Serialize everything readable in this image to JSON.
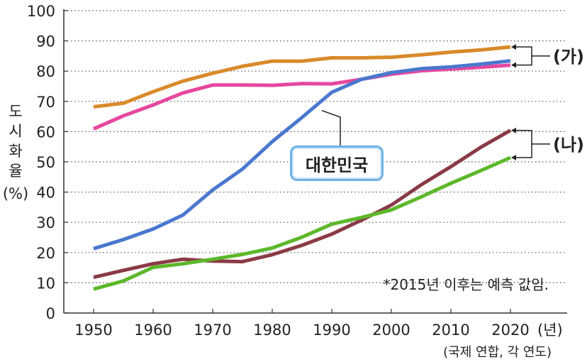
{
  "chart_data": {
    "type": "line",
    "x": [
      1950,
      1955,
      1960,
      1965,
      1970,
      1975,
      1980,
      1985,
      1990,
      1995,
      2000,
      2005,
      2010,
      2015,
      2020
    ],
    "ylim": [
      0,
      100
    ],
    "yticks": [
      0,
      10,
      20,
      30,
      40,
      50,
      60,
      70,
      80,
      90,
      100
    ],
    "xticks": [
      1950,
      1960,
      1970,
      1980,
      1990,
      2000,
      2010,
      2020
    ],
    "grid": "horizontal dotted",
    "ylabel": "도시화율",
    "ylabel_unit": "(%)",
    "xlabel_unit": "(년)",
    "note": "*2015년 이후는 예측 값임.",
    "source": "(국제 연합, 각 연도)",
    "series": [
      {
        "name": "",
        "color": "#d98a2a",
        "values": [
          68.2,
          69.4,
          73.2,
          76.7,
          79.3,
          81.6,
          83.3,
          83.3,
          84.4,
          84.4,
          84.6,
          85.4,
          86.3,
          87.0,
          88.0
        ]
      },
      {
        "name": "",
        "color": "#e6479e",
        "values": [
          60.9,
          65.2,
          68.8,
          72.8,
          75.4,
          75.4,
          75.3,
          75.9,
          75.8,
          77.3,
          79.0,
          80.1,
          80.7,
          81.3,
          82.0
        ]
      },
      {
        "name": "대한민국",
        "color": "#4a78cf",
        "values": [
          21.3,
          24.3,
          27.8,
          32.4,
          40.7,
          47.6,
          56.7,
          64.7,
          73.0,
          77.3,
          79.5,
          80.8,
          81.4,
          82.3,
          83.4
        ]
      },
      {
        "name": "",
        "color": "#8a3a46",
        "values": [
          11.8,
          14.1,
          16.3,
          17.8,
          17.2,
          17.0,
          19.3,
          22.4,
          26.1,
          30.7,
          35.7,
          42.4,
          48.4,
          54.8,
          60.4
        ]
      },
      {
        "name": "",
        "color": "#5cb82a",
        "values": [
          7.9,
          10.6,
          15.1,
          16.3,
          17.8,
          19.4,
          21.5,
          25.1,
          29.4,
          31.6,
          34.1,
          38.4,
          42.9,
          47.1,
          51.4
        ]
      }
    ],
    "groups": [
      {
        "label": "(가)",
        "top": 88.0,
        "bottom": 82.0
      },
      {
        "label": "(나)",
        "top": 60.4,
        "bottom": 51.4
      }
    ]
  }
}
